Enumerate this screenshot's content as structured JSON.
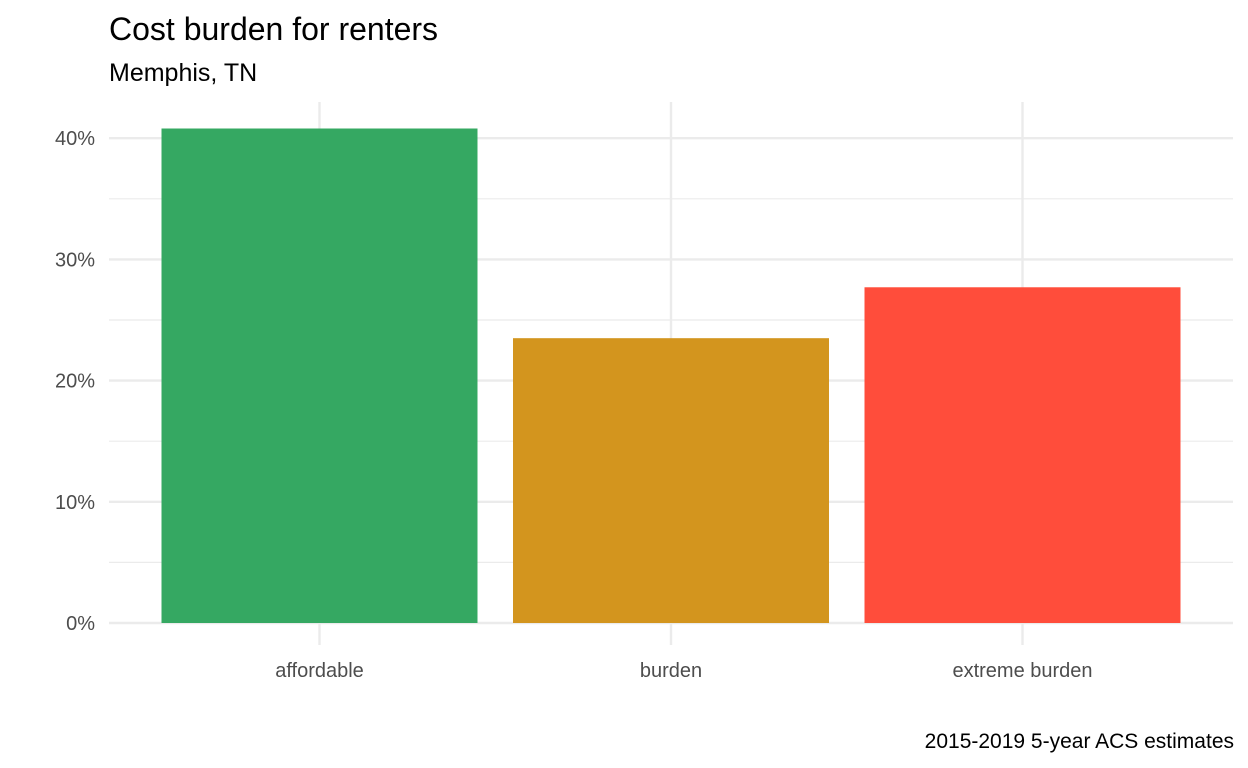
{
  "chart_data": {
    "type": "bar",
    "title": "Cost burden for renters",
    "subtitle": "Memphis, TN",
    "caption": "2015-2019 5-year ACS estimates",
    "xlabel": "",
    "ylabel": "",
    "categories": [
      "affordable",
      "burden",
      "extreme burden"
    ],
    "values": [
      0.408,
      0.235,
      0.277
    ],
    "colors": [
      "#35a862",
      "#d3951e",
      "#ff4d3b"
    ],
    "ylim": [
      0,
      0.4
    ],
    "y_ticks": [
      0,
      0.1,
      0.2,
      0.3,
      0.4
    ],
    "y_tick_labels": [
      "0%",
      "10%",
      "20%",
      "30%",
      "40%"
    ],
    "grid": true,
    "legend": "none"
  }
}
